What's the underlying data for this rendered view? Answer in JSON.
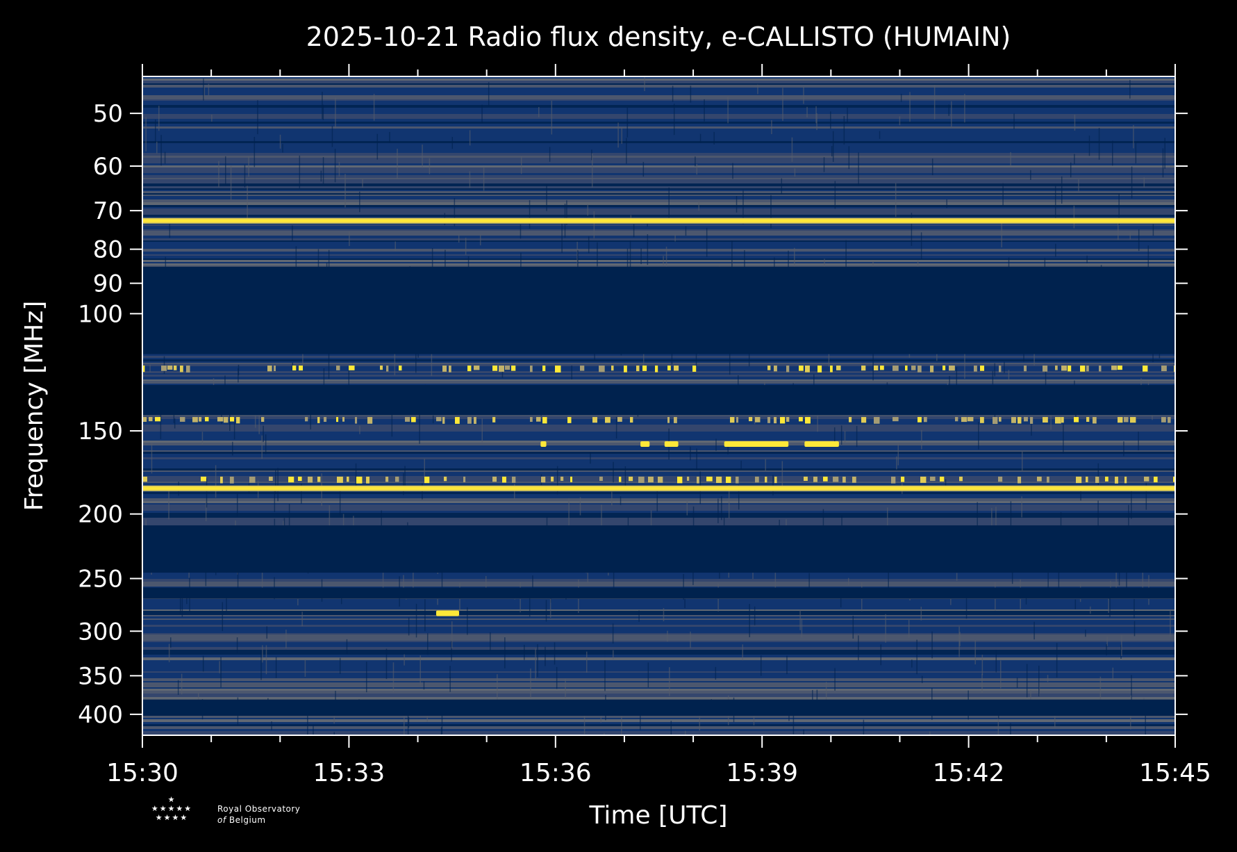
{
  "chart_data": {
    "type": "heatmap",
    "title": "2025-10-21 Radio flux density, e-CALLISTO (HUMAIN)",
    "xlabel": "Time [UTC]",
    "ylabel": "Frequency [MHz]",
    "x_range": [
      "15:30",
      "15:45"
    ],
    "y_range_mhz": [
      44,
      430
    ],
    "y_scale": "log",
    "x_ticks": [
      "15:30",
      "15:33",
      "15:36",
      "15:39",
      "15:42",
      "15:45"
    ],
    "y_ticks": [
      50,
      60,
      70,
      80,
      90,
      100,
      150,
      200,
      250,
      300,
      350,
      400
    ],
    "colormap": [
      "#00224e",
      "#123570",
      "#3b496c",
      "#575d6d",
      "#707173",
      "#8a8678",
      "#a59c74",
      "#c3b369",
      "#e1cc55",
      "#fee838"
    ],
    "masked_bands_mhz": [
      [
        85,
        115
      ],
      [
        128,
        142
      ],
      [
        208,
        245
      ],
      [
        258,
        268
      ],
      [
        380,
        402
      ]
    ],
    "bright_lines": [
      {
        "freq_mhz": 72.5,
        "from": "15:30",
        "to": "15:45",
        "level": "strong"
      },
      {
        "freq_mhz": 183,
        "from": "15:30",
        "to": "15:45",
        "level": "strong"
      },
      {
        "freq_mhz": 120.5,
        "from": "15:30",
        "to": "15:45",
        "level": "intermittent"
      },
      {
        "freq_mhz": 144,
        "from": "15:30",
        "to": "15:45",
        "level": "intermittent"
      },
      {
        "freq_mhz": 177,
        "from": "15:30",
        "to": "15:45",
        "level": "weak"
      }
    ],
    "bursts": [
      {
        "freq_mhz": 157,
        "from": "15:35:47",
        "to": "15:35:52"
      },
      {
        "freq_mhz": 157,
        "from": "15:37:14",
        "to": "15:37:22"
      },
      {
        "freq_mhz": 157,
        "from": "15:37:35",
        "to": "15:37:47"
      },
      {
        "freq_mhz": 157,
        "from": "15:38:27",
        "to": "15:39:23"
      },
      {
        "freq_mhz": 157,
        "from": "15:39:37",
        "to": "15:40:07"
      },
      {
        "freq_mhz": 282,
        "from": "15:34:16",
        "to": "15:34:36"
      }
    ]
  },
  "logo": {
    "line1": "Royal Observatory",
    "line2_prefix": "of",
    "line2": "Belgium"
  },
  "colors": {
    "background": "#000000",
    "axis": "#ffffff",
    "masked": "#00224e",
    "bright": "#fee838"
  }
}
